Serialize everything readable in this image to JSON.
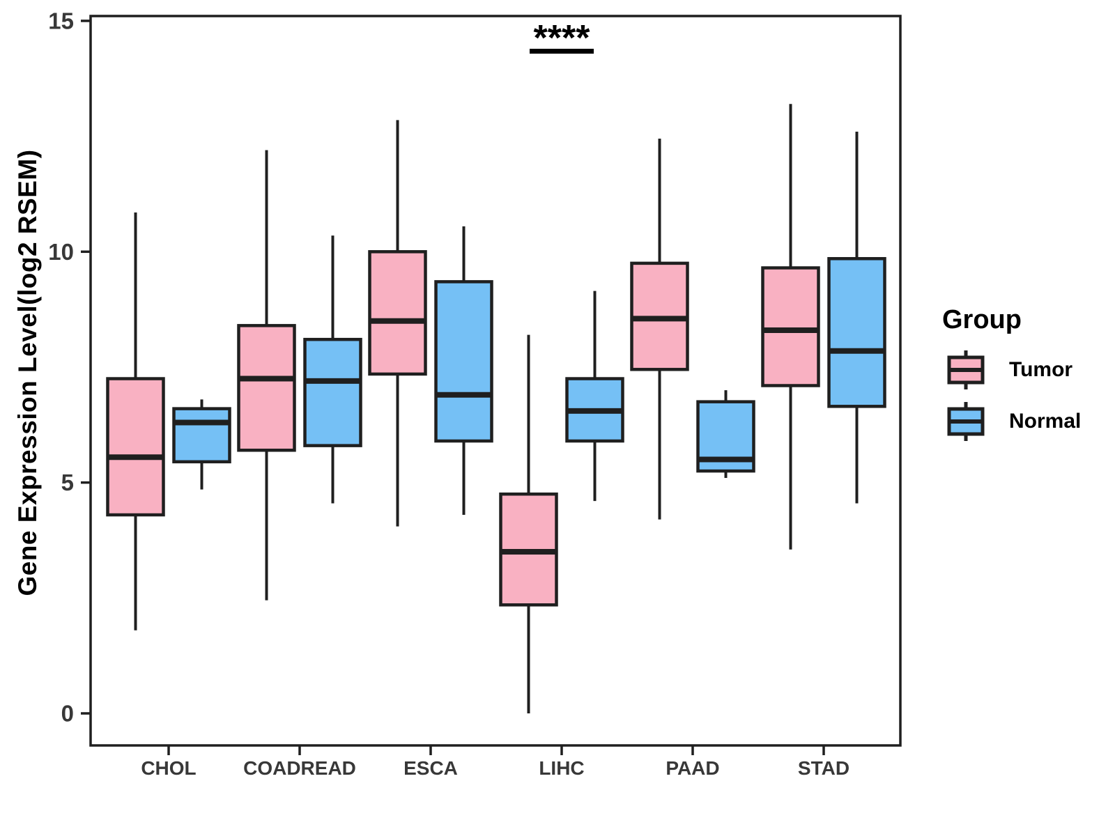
{
  "chart_data": {
    "type": "grouped_boxplot",
    "title": "",
    "ylabel": "Gene Expression Level(log2 RSEM)",
    "xlabel": "",
    "categories": [
      "CHOL",
      "COADREAD",
      "ESCA",
      "LIHC",
      "PAAD",
      "STAD"
    ],
    "y_ticks": [
      0,
      5,
      10,
      15
    ],
    "ylim": [
      -0.7,
      15.1
    ],
    "grid": "off",
    "legend_position": "right",
    "legend": {
      "title": "Group",
      "entries": [
        "Tumor",
        "Normal"
      ]
    },
    "series": [
      {
        "name": "Tumor",
        "fill_color": "#F9B1C2",
        "stroke_color": "#1f1f1f",
        "boxes": [
          {
            "category": "CHOL",
            "low": 1.8,
            "q1": 4.3,
            "median": 5.55,
            "q3": 7.25,
            "high": 10.85
          },
          {
            "category": "COADREAD",
            "low": 2.45,
            "q1": 5.7,
            "median": 7.25,
            "q3": 8.4,
            "high": 12.2
          },
          {
            "category": "ESCA",
            "low": 4.05,
            "q1": 7.35,
            "median": 8.5,
            "q3": 10.0,
            "high": 12.85
          },
          {
            "category": "LIHC",
            "low": 0.0,
            "q1": 2.35,
            "median": 3.5,
            "q3": 4.75,
            "high": 8.2
          },
          {
            "category": "PAAD",
            "low": 4.2,
            "q1": 7.45,
            "median": 8.55,
            "q3": 9.75,
            "high": 12.45
          },
          {
            "category": "STAD",
            "low": 3.55,
            "q1": 7.1,
            "median": 8.3,
            "q3": 9.65,
            "high": 13.2
          }
        ]
      },
      {
        "name": "Normal",
        "fill_color": "#75C0F5",
        "stroke_color": "#1f1f1f",
        "boxes": [
          {
            "category": "CHOL",
            "low": 4.85,
            "q1": 5.45,
            "median": 6.3,
            "q3": 6.6,
            "high": 6.8
          },
          {
            "category": "COADREAD",
            "low": 4.55,
            "q1": 5.8,
            "median": 7.2,
            "q3": 8.1,
            "high": 10.35
          },
          {
            "category": "ESCA",
            "low": 4.3,
            "q1": 5.9,
            "median": 6.9,
            "q3": 9.35,
            "high": 10.55
          },
          {
            "category": "LIHC",
            "low": 4.6,
            "q1": 5.9,
            "median": 6.55,
            "q3": 7.25,
            "high": 9.15
          },
          {
            "category": "PAAD",
            "low": 5.1,
            "q1": 5.25,
            "median": 5.5,
            "q3": 6.75,
            "high": 7.0
          },
          {
            "category": "STAD",
            "low": 4.55,
            "q1": 6.65,
            "median": 7.85,
            "q3": 9.85,
            "high": 12.6
          }
        ]
      }
    ],
    "annotation": {
      "label": "****",
      "category": "LIHC"
    }
  }
}
